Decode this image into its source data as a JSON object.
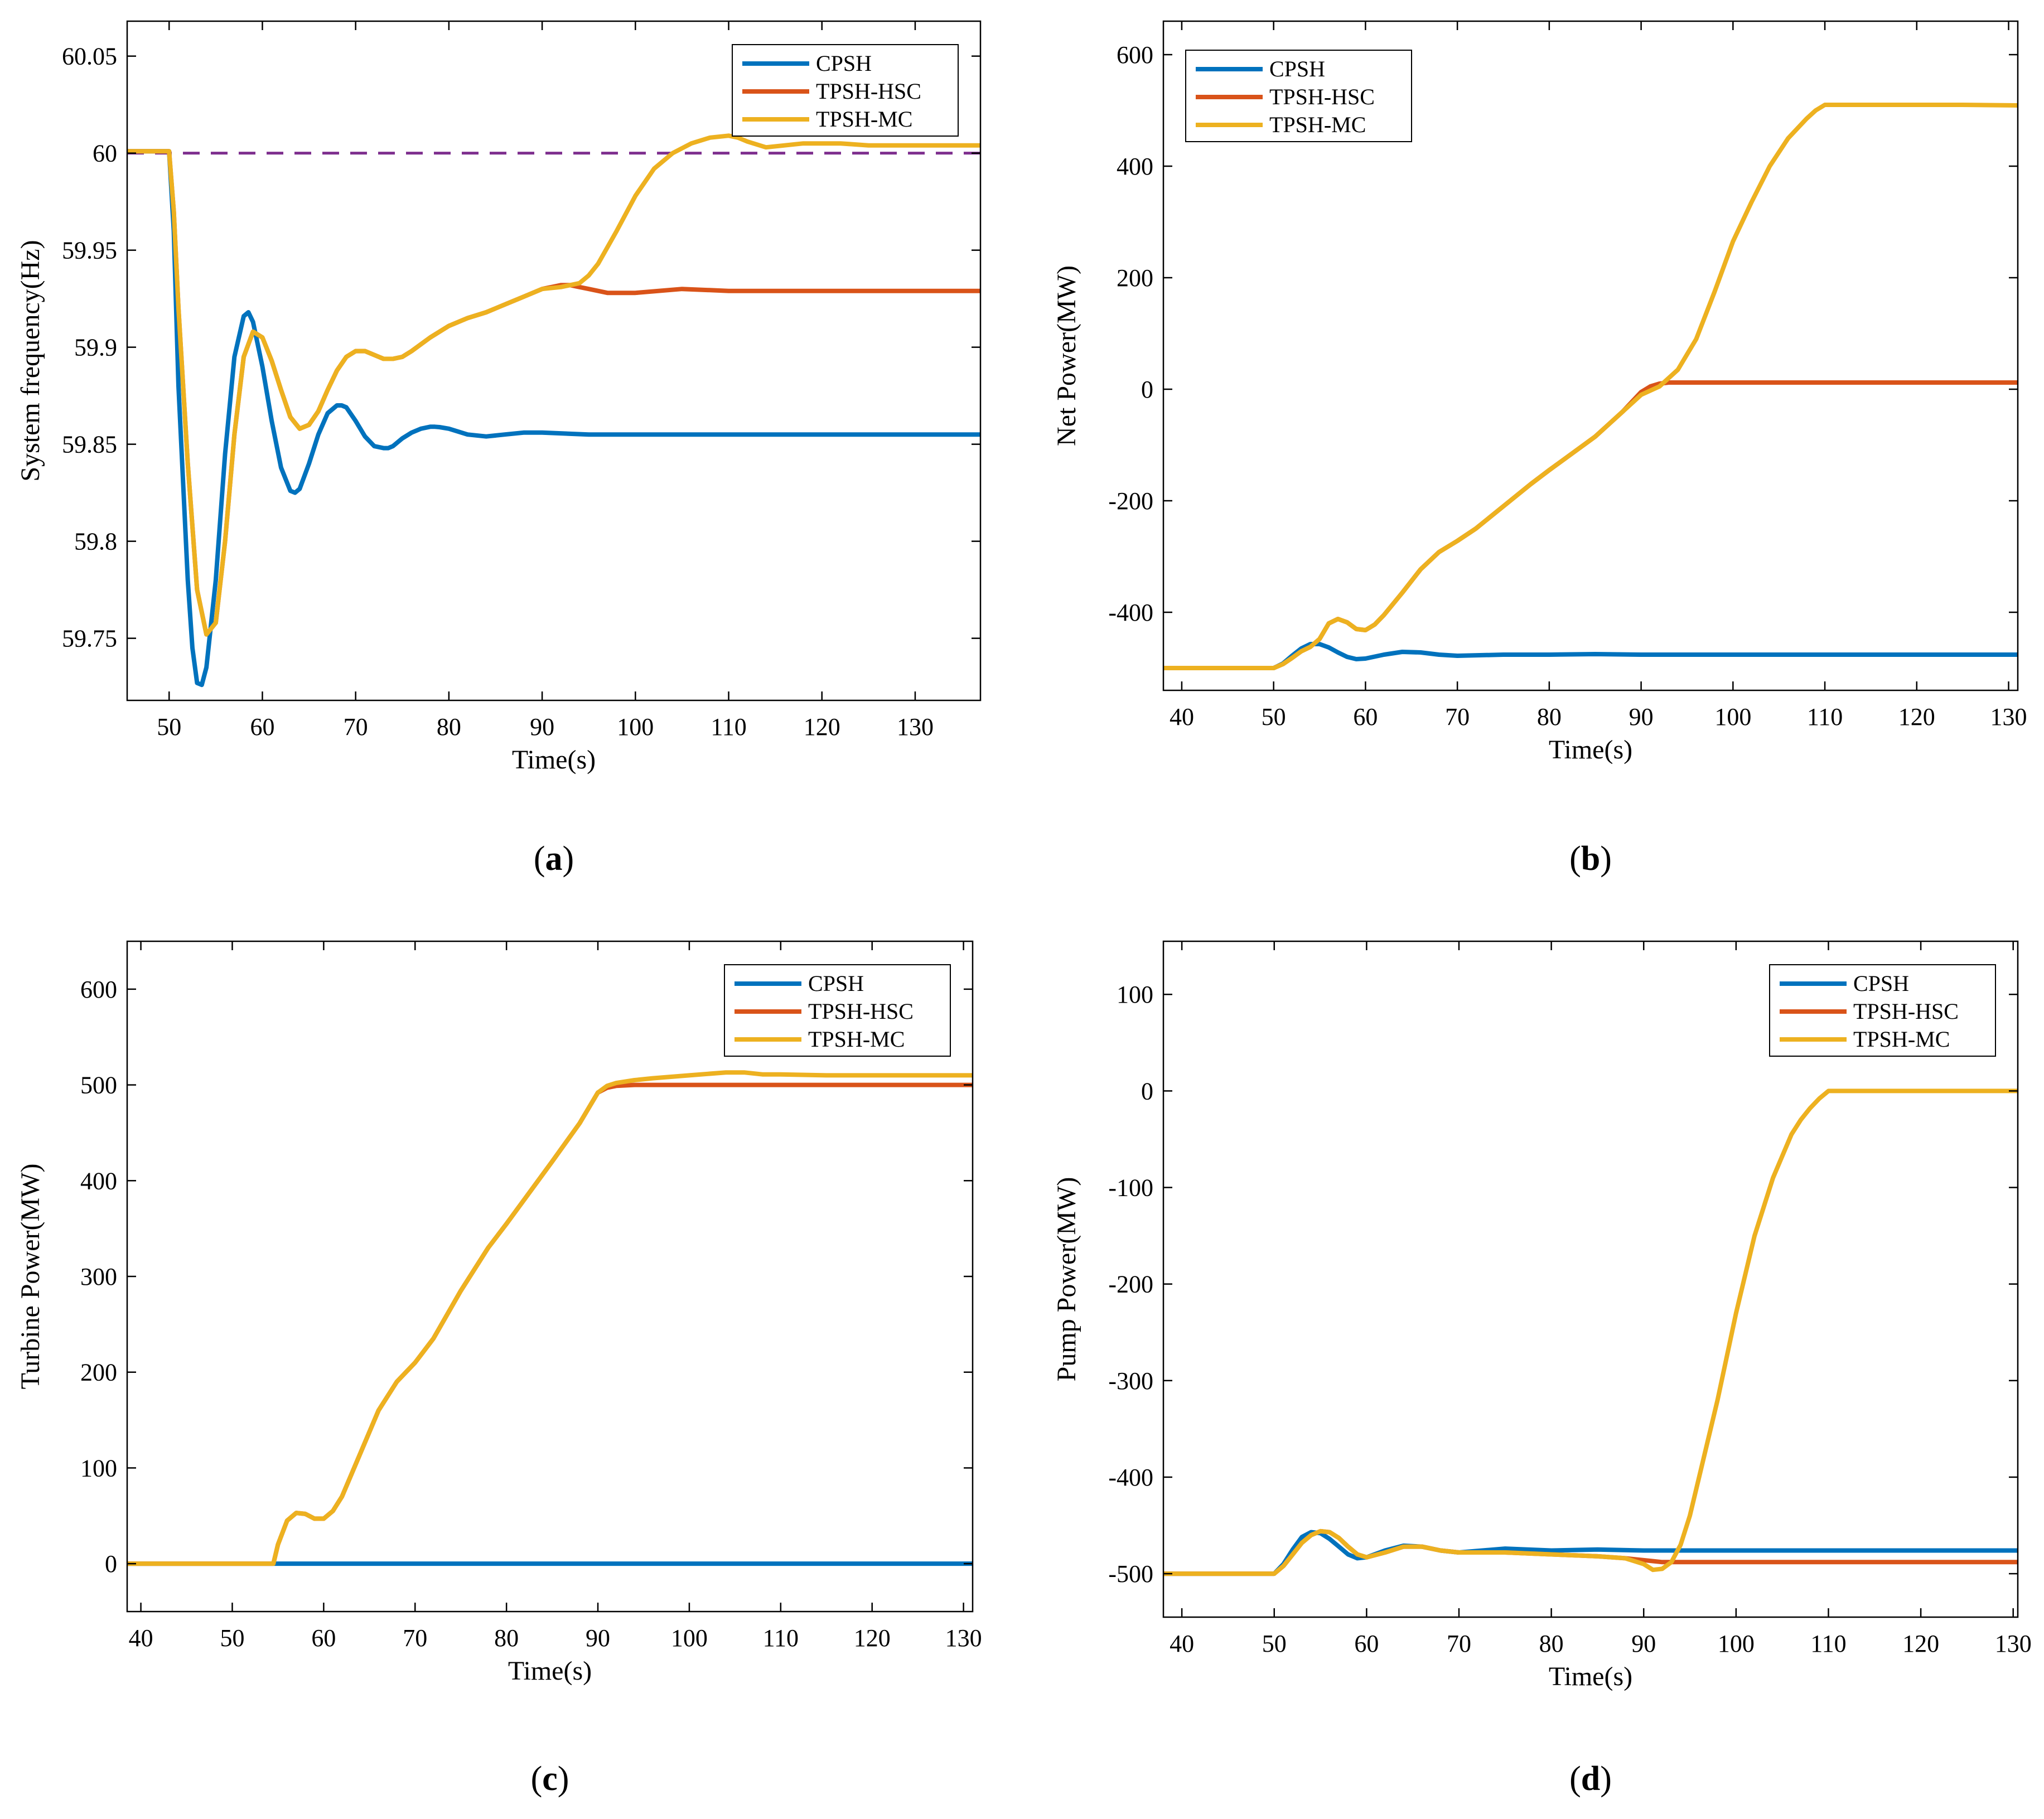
{
  "colors": {
    "CPSH": "#0072BD",
    "TPSH-HSC": "#D95319",
    "TPSH-MC": "#EDB120",
    "reference": "#7E2F8E",
    "axis": "#000000"
  },
  "chart_data": [
    {
      "type": "line",
      "caption": "a",
      "xlabel": "Time(s)",
      "ylabel": "System frequency(Hz)",
      "xlim": [
        45.5,
        137
      ],
      "ylim": [
        59.718,
        60.068
      ],
      "xticks": [
        50,
        60,
        70,
        80,
        90,
        100,
        110,
        120,
        130
      ],
      "xtick_labels": [
        "50",
        "60",
        "70",
        "80",
        "90",
        "100",
        "110",
        "120",
        "130"
      ],
      "yticks": [
        59.75,
        59.8,
        59.85,
        59.9,
        59.95,
        60,
        60.05
      ],
      "ytick_labels": [
        "59.75",
        "59.8",
        "59.85",
        "59.9",
        "59.95",
        "60",
        "60.05"
      ],
      "legend_position": "top-right",
      "reference_line": {
        "y": 60,
        "style": "dashed"
      },
      "series": [
        {
          "name": "CPSH",
          "color_key": "CPSH",
          "x": [
            45.5,
            50,
            50.5,
            51,
            52,
            52.5,
            53,
            53.5,
            54,
            55,
            56,
            57,
            58,
            58.5,
            59,
            60,
            61,
            62,
            63,
            63.5,
            64,
            65,
            66,
            67,
            68,
            68.5,
            69,
            70,
            71,
            72,
            73,
            73.5,
            74,
            75,
            76,
            77,
            78,
            78.5,
            79,
            80,
            82,
            84,
            86,
            88,
            90,
            95,
            100,
            110,
            120,
            137
          ],
          "y": [
            60.001,
            60.001,
            59.96,
            59.88,
            59.78,
            59.745,
            59.727,
            59.726,
            59.735,
            59.78,
            59.845,
            59.895,
            59.916,
            59.918,
            59.913,
            59.89,
            59.862,
            59.838,
            59.826,
            59.825,
            59.827,
            59.84,
            59.855,
            59.866,
            59.87,
            59.87,
            59.869,
            59.862,
            59.854,
            59.849,
            59.848,
            59.848,
            59.849,
            59.853,
            59.856,
            59.858,
            59.859,
            59.859,
            59.8588,
            59.858,
            59.855,
            59.854,
            59.855,
            59.856,
            59.856,
            59.855,
            59.855,
            59.855,
            59.855,
            59.855
          ]
        },
        {
          "name": "TPSH-HSC",
          "color_key": "TPSH-HSC",
          "x": [
            45.5,
            50,
            50.5,
            51,
            52,
            53,
            54,
            55,
            56,
            57,
            58,
            59,
            60,
            61,
            62,
            63,
            64,
            65,
            66,
            67,
            68,
            69,
            70,
            71,
            72,
            73,
            74,
            75,
            76,
            78,
            80,
            82,
            84,
            86,
            88,
            90,
            91,
            92,
            93,
            94,
            95,
            97,
            100,
            105,
            110,
            137
          ],
          "y": [
            60.001,
            60.001,
            59.97,
            59.92,
            59.84,
            59.775,
            59.752,
            59.758,
            59.8,
            59.855,
            59.895,
            59.908,
            59.905,
            59.893,
            59.878,
            59.864,
            59.858,
            59.86,
            59.867,
            59.878,
            59.888,
            59.895,
            59.898,
            59.898,
            59.896,
            59.894,
            59.894,
            59.895,
            59.898,
            59.905,
            59.911,
            59.915,
            59.918,
            59.922,
            59.926,
            59.93,
            59.931,
            59.932,
            59.932,
            59.931,
            59.93,
            59.928,
            59.928,
            59.93,
            59.929,
            59.929
          ]
        },
        {
          "name": "TPSH-MC",
          "color_key": "TPSH-MC",
          "x": [
            45.5,
            50,
            50.5,
            51,
            52,
            53,
            54,
            55,
            56,
            57,
            58,
            59,
            60,
            61,
            62,
            63,
            64,
            65,
            66,
            67,
            68,
            69,
            70,
            71,
            72,
            73,
            74,
            75,
            76,
            78,
            80,
            82,
            84,
            86,
            88,
            90,
            92,
            94,
            95,
            96,
            98,
            100,
            102,
            104,
            106,
            108,
            110,
            111,
            112,
            114,
            116,
            118,
            120,
            122,
            125,
            130,
            137
          ],
          "y": [
            60.001,
            60.001,
            59.97,
            59.92,
            59.84,
            59.775,
            59.752,
            59.758,
            59.8,
            59.855,
            59.895,
            59.908,
            59.905,
            59.893,
            59.878,
            59.864,
            59.858,
            59.86,
            59.867,
            59.878,
            59.888,
            59.895,
            59.898,
            59.898,
            59.896,
            59.894,
            59.894,
            59.895,
            59.898,
            59.905,
            59.911,
            59.915,
            59.918,
            59.922,
            59.926,
            59.93,
            59.931,
            59.933,
            59.937,
            59.943,
            59.96,
            59.978,
            59.992,
            60.0,
            60.005,
            60.008,
            60.009,
            60.008,
            60.006,
            60.003,
            60.004,
            60.005,
            60.005,
            60.005,
            60.004,
            60.004,
            60.004
          ]
        }
      ]
    },
    {
      "type": "line",
      "caption": "b",
      "xlabel": "Time(s)",
      "ylabel": "Net Power(MW)",
      "xlim": [
        38,
        131
      ],
      "ylim": [
        -540,
        660
      ],
      "xticks": [
        40,
        50,
        60,
        70,
        80,
        90,
        100,
        110,
        120,
        130
      ],
      "xtick_labels": [
        "40",
        "50",
        "60",
        "70",
        "80",
        "90",
        "100",
        "110",
        "120",
        "130"
      ],
      "yticks": [
        -400,
        -200,
        0,
        200,
        400,
        600
      ],
      "ytick_labels": [
        "-400",
        "-200",
        "0",
        "200",
        "400",
        "600"
      ],
      "legend_position": "top-left",
      "series": [
        {
          "name": "CPSH",
          "color_key": "CPSH",
          "x": [
            38,
            50,
            51,
            52,
            53,
            54,
            55,
            56,
            57,
            58,
            59,
            60,
            62,
            64,
            66,
            68,
            70,
            75,
            80,
            85,
            90,
            100,
            131
          ],
          "y": [
            -500,
            -500,
            -492,
            -478,
            -465,
            -457,
            -457,
            -463,
            -472,
            -480,
            -484,
            -483,
            -476,
            -471,
            -472,
            -476,
            -478,
            -476,
            -476,
            -475,
            -476,
            -476,
            -476
          ]
        },
        {
          "name": "TPSH-HSC",
          "color_key": "TPSH-HSC",
          "x": [
            38,
            50,
            51,
            52,
            53,
            54,
            55,
            56,
            57,
            58,
            59,
            60,
            61,
            62,
            64,
            66,
            68,
            70,
            72,
            75,
            78,
            80,
            85,
            88,
            90,
            91,
            92,
            93,
            95,
            100,
            131
          ],
          "y": [
            -500,
            -500,
            -493,
            -482,
            -470,
            -462,
            -448,
            -420,
            -412,
            -418,
            -430,
            -432,
            -422,
            -405,
            -365,
            -323,
            -292,
            -272,
            -250,
            -210,
            -170,
            -145,
            -85,
            -40,
            -5,
            5,
            10,
            12,
            12,
            12,
            12
          ]
        },
        {
          "name": "TPSH-MC",
          "color_key": "TPSH-MC",
          "x": [
            38,
            50,
            51,
            52,
            53,
            54,
            55,
            56,
            57,
            58,
            59,
            60,
            61,
            62,
            64,
            66,
            68,
            70,
            72,
            75,
            78,
            80,
            85,
            88,
            90,
            92,
            94,
            96,
            98,
            100,
            102,
            104,
            106,
            108,
            109,
            110,
            112,
            115,
            120,
            125,
            131
          ],
          "y": [
            -500,
            -500,
            -493,
            -482,
            -470,
            -462,
            -448,
            -420,
            -412,
            -418,
            -430,
            -432,
            -422,
            -405,
            -365,
            -323,
            -292,
            -272,
            -250,
            -210,
            -170,
            -145,
            -85,
            -40,
            -10,
            5,
            35,
            90,
            175,
            265,
            335,
            400,
            450,
            485,
            500,
            510,
            510,
            510,
            510,
            510,
            509
          ]
        }
      ]
    },
    {
      "type": "line",
      "caption": "c",
      "xlabel": "Time(s)",
      "ylabel": "Turbine Power(MW)",
      "xlim": [
        38.5,
        131
      ],
      "ylim": [
        -50,
        650
      ],
      "xticks": [
        40,
        50,
        60,
        70,
        80,
        90,
        100,
        110,
        120,
        130
      ],
      "xtick_labels": [
        "40",
        "50",
        "60",
        "70",
        "80",
        "90",
        "100",
        "110",
        "120",
        "130"
      ],
      "yticks": [
        0,
        100,
        200,
        300,
        400,
        500,
        600
      ],
      "ytick_labels": [
        "0",
        "100",
        "200",
        "300",
        "400",
        "500",
        "600"
      ],
      "legend_position": "top-right",
      "series": [
        {
          "name": "CPSH",
          "color_key": "CPSH",
          "x": [
            38.5,
            131
          ],
          "y": [
            0,
            0
          ]
        },
        {
          "name": "TPSH-HSC",
          "color_key": "TPSH-HSC",
          "x": [
            38.5,
            54.5,
            55,
            56,
            57,
            58,
            59,
            60,
            61,
            62,
            64,
            66,
            68,
            70,
            72,
            75,
            78,
            80,
            85,
            88,
            90,
            91,
            92,
            94,
            96,
            100,
            131
          ],
          "y": [
            0,
            0,
            20,
            45,
            53,
            52,
            47,
            47,
            55,
            70,
            115,
            160,
            190,
            210,
            235,
            285,
            330,
            355,
            420,
            460,
            492,
            497,
            499,
            500,
            500,
            500,
            500
          ]
        },
        {
          "name": "TPSH-MC",
          "color_key": "TPSH-MC",
          "x": [
            38.5,
            54.5,
            55,
            56,
            57,
            58,
            59,
            60,
            61,
            62,
            64,
            66,
            68,
            70,
            72,
            75,
            78,
            80,
            85,
            88,
            90,
            91,
            92,
            94,
            96,
            100,
            104,
            106,
            108,
            110,
            115,
            120,
            131
          ],
          "y": [
            0,
            0,
            20,
            45,
            53,
            52,
            47,
            47,
            55,
            70,
            115,
            160,
            190,
            210,
            235,
            285,
            330,
            355,
            420,
            460,
            492,
            499,
            502,
            505,
            507,
            510,
            513,
            513,
            511,
            511,
            510,
            510,
            510
          ]
        }
      ]
    },
    {
      "type": "line",
      "caption": "d",
      "xlabel": "Time(s)",
      "ylabel": "Pump Power(MW)",
      "xlim": [
        38,
        130.5
      ],
      "ylim": [
        -545,
        155
      ],
      "xticks": [
        40,
        50,
        60,
        70,
        80,
        90,
        100,
        110,
        120,
        130
      ],
      "xtick_labels": [
        "40",
        "50",
        "60",
        "70",
        "80",
        "90",
        "100",
        "110",
        "120",
        "130"
      ],
      "yticks": [
        -500,
        -400,
        -300,
        -200,
        -100,
        0,
        100
      ],
      "ytick_labels": [
        "-500",
        "-400",
        "-300",
        "-200",
        "-100",
        "0",
        "100"
      ],
      "legend_position": "top-right",
      "series": [
        {
          "name": "CPSH",
          "color_key": "CPSH",
          "x": [
            38,
            50,
            51,
            52,
            53,
            54,
            55,
            56,
            57,
            58,
            59,
            60,
            62,
            64,
            66,
            68,
            70,
            75,
            80,
            85,
            90,
            100,
            130.5
          ],
          "y": [
            -500,
            -500,
            -490,
            -475,
            -462,
            -457,
            -458,
            -464,
            -472,
            -480,
            -484,
            -483,
            -476,
            -471,
            -472,
            -476,
            -478,
            -474,
            -476,
            -475,
            -476,
            -476,
            -476
          ]
        },
        {
          "name": "TPSH-HSC",
          "color_key": "TPSH-HSC",
          "x": [
            38,
            50,
            51,
            52,
            53,
            54,
            55,
            56,
            57,
            58,
            59,
            60,
            62,
            64,
            66,
            68,
            70,
            75,
            80,
            85,
            88,
            90,
            92,
            93,
            95,
            100,
            130.5
          ],
          "y": [
            -500,
            -500,
            -492,
            -480,
            -468,
            -460,
            -456,
            -457,
            -463,
            -472,
            -480,
            -483,
            -478,
            -472,
            -472,
            -476,
            -478,
            -478,
            -480,
            -482,
            -484,
            -486,
            -488,
            -488,
            -488,
            -488,
            -488
          ]
        },
        {
          "name": "TPSH-MC",
          "color_key": "TPSH-MC",
          "x": [
            38,
            50,
            51,
            52,
            53,
            54,
            55,
            56,
            57,
            58,
            59,
            60,
            62,
            64,
            66,
            68,
            70,
            75,
            80,
            85,
            88,
            90,
            91,
            92,
            93,
            94,
            95,
            96,
            98,
            100,
            102,
            104,
            106,
            107,
            108,
            109,
            110,
            112,
            115,
            120,
            130.5
          ],
          "y": [
            -500,
            -500,
            -492,
            -480,
            -468,
            -460,
            -456,
            -457,
            -463,
            -472,
            -480,
            -483,
            -478,
            -472,
            -472,
            -476,
            -478,
            -478,
            -480,
            -482,
            -484,
            -490,
            -496,
            -495,
            -488,
            -470,
            -440,
            -400,
            -320,
            -230,
            -150,
            -90,
            -45,
            -30,
            -18,
            -8,
            0,
            0,
            0,
            0,
            0
          ]
        }
      ]
    }
  ]
}
